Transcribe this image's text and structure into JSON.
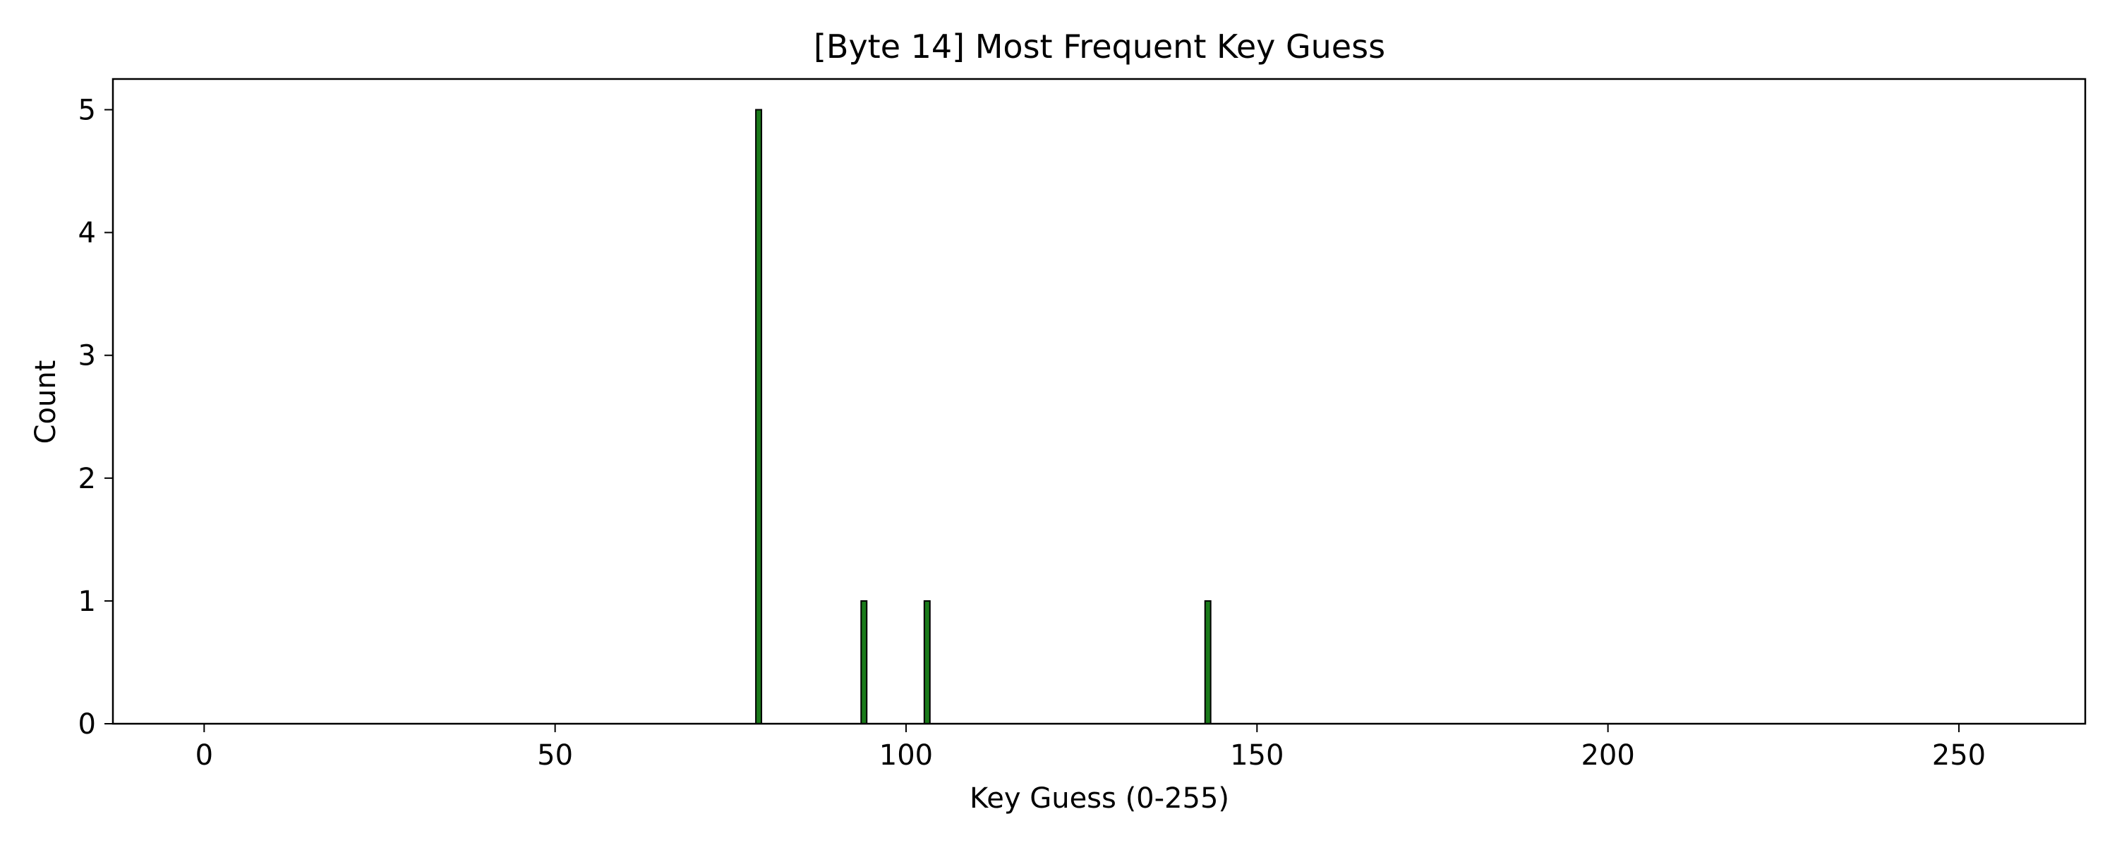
{
  "chart_data": {
    "type": "bar",
    "title": "[Byte 14] Most Frequent Key Guess",
    "xlabel": "Key Guess (0-255)",
    "ylabel": "Count",
    "xlim": [
      -13,
      268
    ],
    "ylim": [
      0,
      5.25
    ],
    "xticks": [
      0,
      50,
      100,
      150,
      200,
      250
    ],
    "yticks": [
      0,
      1,
      2,
      3,
      4,
      5
    ],
    "grid": false,
    "bar_color": "#1a7a1a",
    "edge_color": "#000000",
    "series": [
      {
        "x_range": [
          0,
          255
        ],
        "nonzero": [
          {
            "x": 79,
            "count": 5
          },
          {
            "x": 94,
            "count": 1
          },
          {
            "x": 103,
            "count": 1
          },
          {
            "x": 143,
            "count": 1
          }
        ]
      }
    ]
  }
}
